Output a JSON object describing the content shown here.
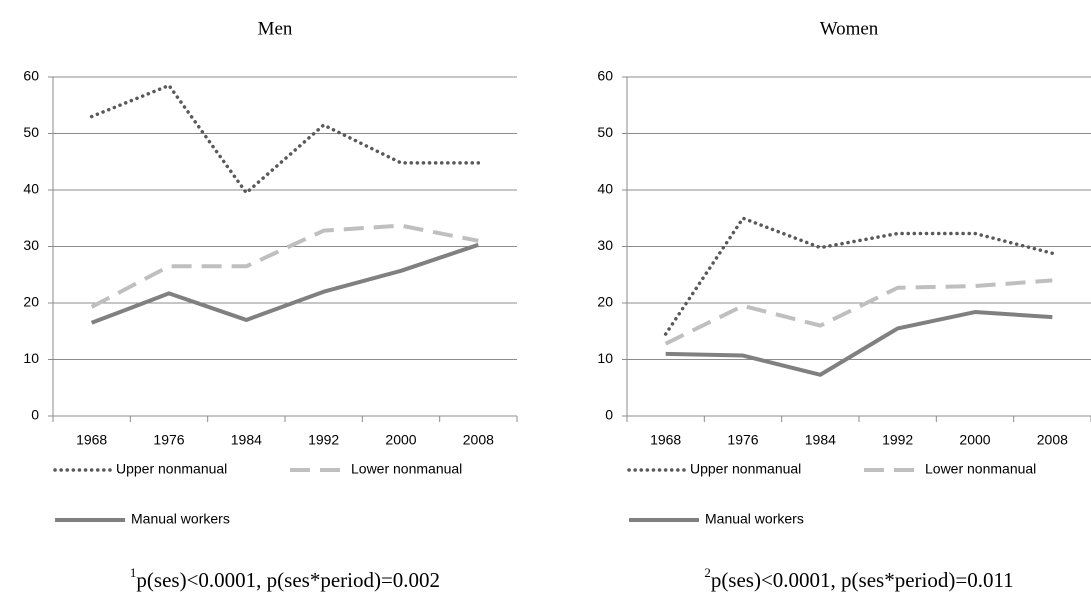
{
  "chart_data": [
    {
      "type": "line",
      "title": "Men",
      "categories": [
        "1968",
        "1976",
        "1984",
        "1992",
        "2000",
        "2008"
      ],
      "series": [
        {
          "name": "Upper nonmanual",
          "color": "#595959",
          "line_style": "dotted",
          "values": [
            53,
            58.5,
            39.5,
            51.5,
            44.8,
            44.8
          ]
        },
        {
          "name": "Lower nonmanual",
          "color": "#bfbfbf",
          "line_style": "dashed",
          "values": [
            19.3,
            26.5,
            26.5,
            32.8,
            33.7,
            31
          ]
        },
        {
          "name": "Manual workers",
          "color": "#808080",
          "line_style": "solid",
          "values": [
            16.5,
            21.7,
            17,
            22,
            25.7,
            30.3
          ]
        }
      ],
      "ylim": [
        0,
        60
      ],
      "yticks": [
        0,
        10,
        20,
        30,
        40,
        50,
        60
      ],
      "grid": true,
      "footnote_mark": "1",
      "footnote": "p(ses)<0.0001, p(ses*period)=0.002"
    },
    {
      "type": "line",
      "title": "Women",
      "categories": [
        "1968",
        "1976",
        "1984",
        "1992",
        "2000",
        "2008"
      ],
      "series": [
        {
          "name": "Upper nonmanual",
          "color": "#595959",
          "line_style": "dotted",
          "values": [
            14.5,
            35,
            29.8,
            32.3,
            32.3,
            28.8
          ]
        },
        {
          "name": "Lower nonmanual",
          "color": "#bfbfbf",
          "line_style": "dashed",
          "values": [
            12.8,
            19.5,
            16,
            22.7,
            23,
            24
          ]
        },
        {
          "name": "Manual workers",
          "color": "#808080",
          "line_style": "solid",
          "values": [
            11,
            10.7,
            7.3,
            15.5,
            18.4,
            17.5
          ]
        }
      ],
      "ylim": [
        0,
        60
      ],
      "yticks": [
        0,
        10,
        20,
        30,
        40,
        50,
        60
      ],
      "grid": true,
      "footnote_mark": "2",
      "footnote": "p(ses)<0.0001, p(ses*period)=0.011"
    }
  ]
}
